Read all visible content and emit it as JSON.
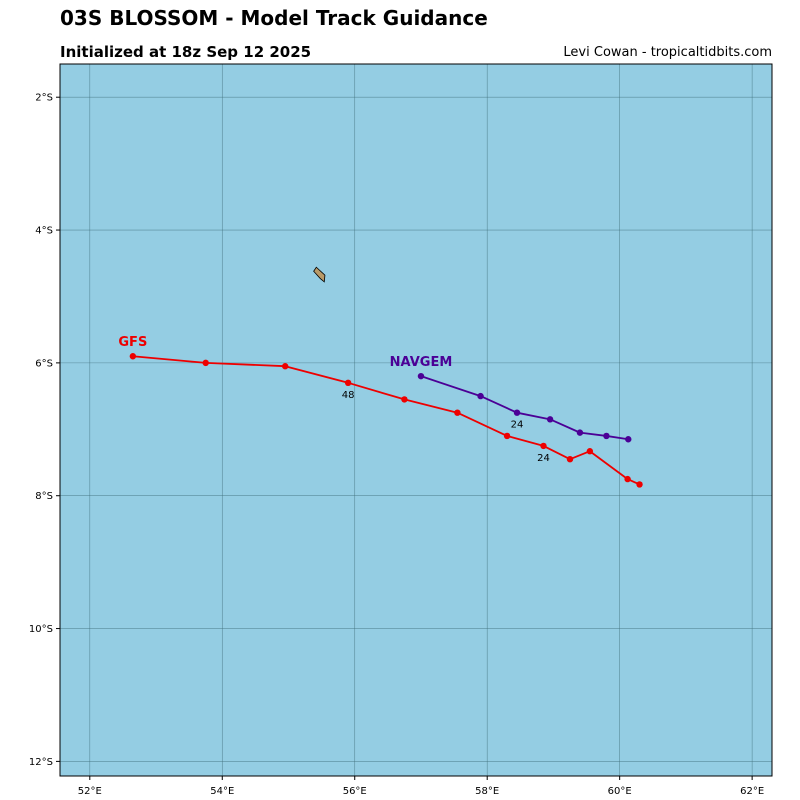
{
  "header": {
    "title": "03S BLOSSOM - Model Track Guidance",
    "subtitle": "Initialized at 18z Sep 12 2025",
    "credit": "Levi Cowan - tropicaltidbits.com"
  },
  "map": {
    "ocean_color": "#94cde3",
    "land_color": "#b89a68",
    "grid_color": "#3f6f7a",
    "extent": {
      "lon": [
        51.55,
        62.3
      ],
      "lat": [
        -12.22,
        -1.5
      ]
    },
    "lon_ticks": [
      {
        "value": 52,
        "label": "52°E"
      },
      {
        "value": 54,
        "label": "54°E"
      },
      {
        "value": 56,
        "label": "56°E"
      },
      {
        "value": 58,
        "label": "58°E"
      },
      {
        "value": 60,
        "label": "60°E"
      },
      {
        "value": 62,
        "label": "62°E"
      }
    ],
    "lat_ticks": [
      {
        "value": -2,
        "label": "2°S"
      },
      {
        "value": -4,
        "label": "4°S"
      },
      {
        "value": -6,
        "label": "6°S"
      },
      {
        "value": -8,
        "label": "8°S"
      },
      {
        "value": -10,
        "label": "10°S"
      },
      {
        "value": -12,
        "label": "12°S"
      }
    ],
    "island": [
      [
        55.42,
        -4.56
      ],
      [
        55.55,
        -4.68
      ],
      [
        55.54,
        -4.78
      ],
      [
        55.48,
        -4.73
      ],
      [
        55.38,
        -4.62
      ]
    ]
  },
  "tracks": [
    {
      "name": "GFS",
      "color": "#ee0000",
      "points": [
        [
          60.3,
          -7.83
        ],
        [
          60.12,
          -7.75
        ],
        [
          59.55,
          -7.33
        ],
        [
          59.25,
          -7.45
        ],
        [
          58.85,
          -7.25
        ],
        [
          58.3,
          -7.1
        ],
        [
          57.55,
          -6.75
        ],
        [
          56.75,
          -6.55
        ],
        [
          55.9,
          -6.3
        ],
        [
          54.95,
          -6.05
        ],
        [
          53.75,
          -6.0
        ],
        [
          52.65,
          -5.9
        ]
      ],
      "lead_labels": [
        {
          "text": "24",
          "lon": 58.85,
          "lat": -7.25
        },
        {
          "text": "48",
          "lon": 55.9,
          "lat": -6.3
        }
      ]
    },
    {
      "name": "NAVGEM",
      "color": "#4b0096",
      "points": [
        [
          60.13,
          -7.15
        ],
        [
          59.8,
          -7.1
        ],
        [
          59.4,
          -7.05
        ],
        [
          58.95,
          -6.85
        ],
        [
          58.45,
          -6.75
        ],
        [
          57.9,
          -6.5
        ],
        [
          57.0,
          -6.2
        ]
      ],
      "lead_labels": [
        {
          "text": "24",
          "lon": 58.45,
          "lat": -6.75
        }
      ]
    }
  ]
}
